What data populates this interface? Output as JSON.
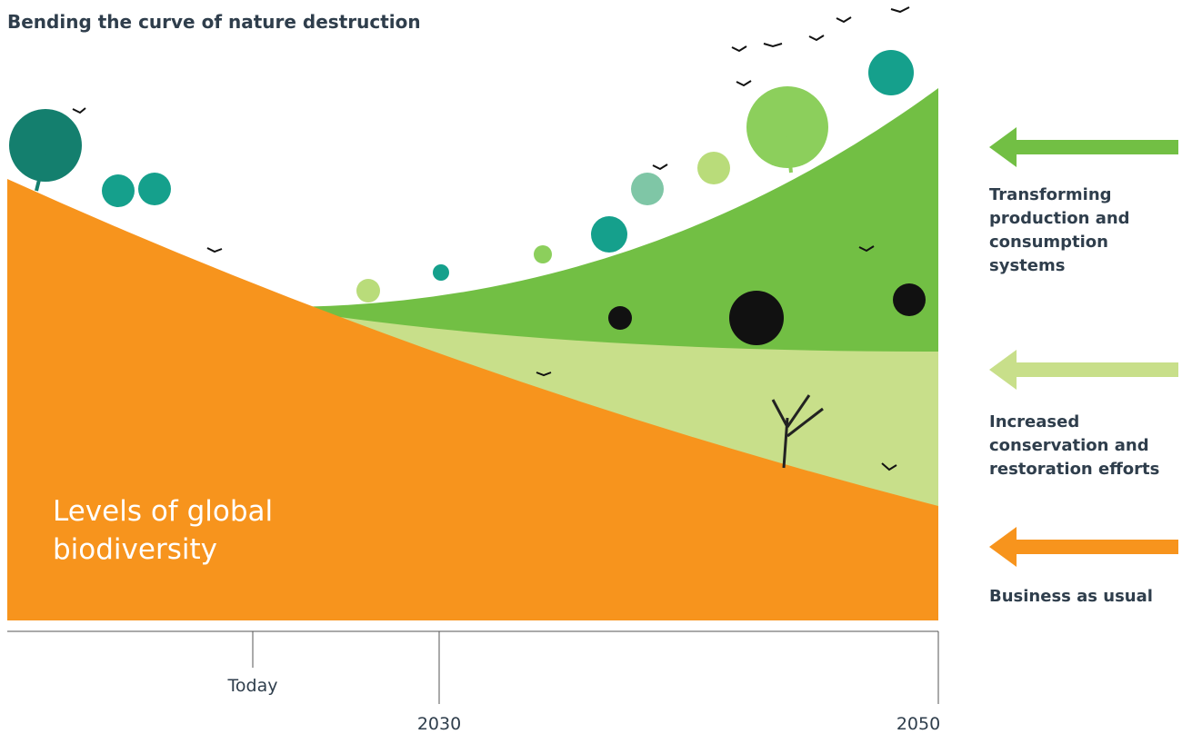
{
  "title": "Bending the curve of nature destruction",
  "area_label": "Levels of global biodiversity",
  "legend": [
    {
      "label": "Transforming production and consumption systems",
      "color": "#72bf44"
    },
    {
      "label": "Increased conservation and restoration efforts",
      "color": "#c8df8a"
    },
    {
      "label": "Business as usual",
      "color": "#f7941d"
    }
  ],
  "timeline": [
    "Today",
    "2030",
    "2050"
  ]
}
